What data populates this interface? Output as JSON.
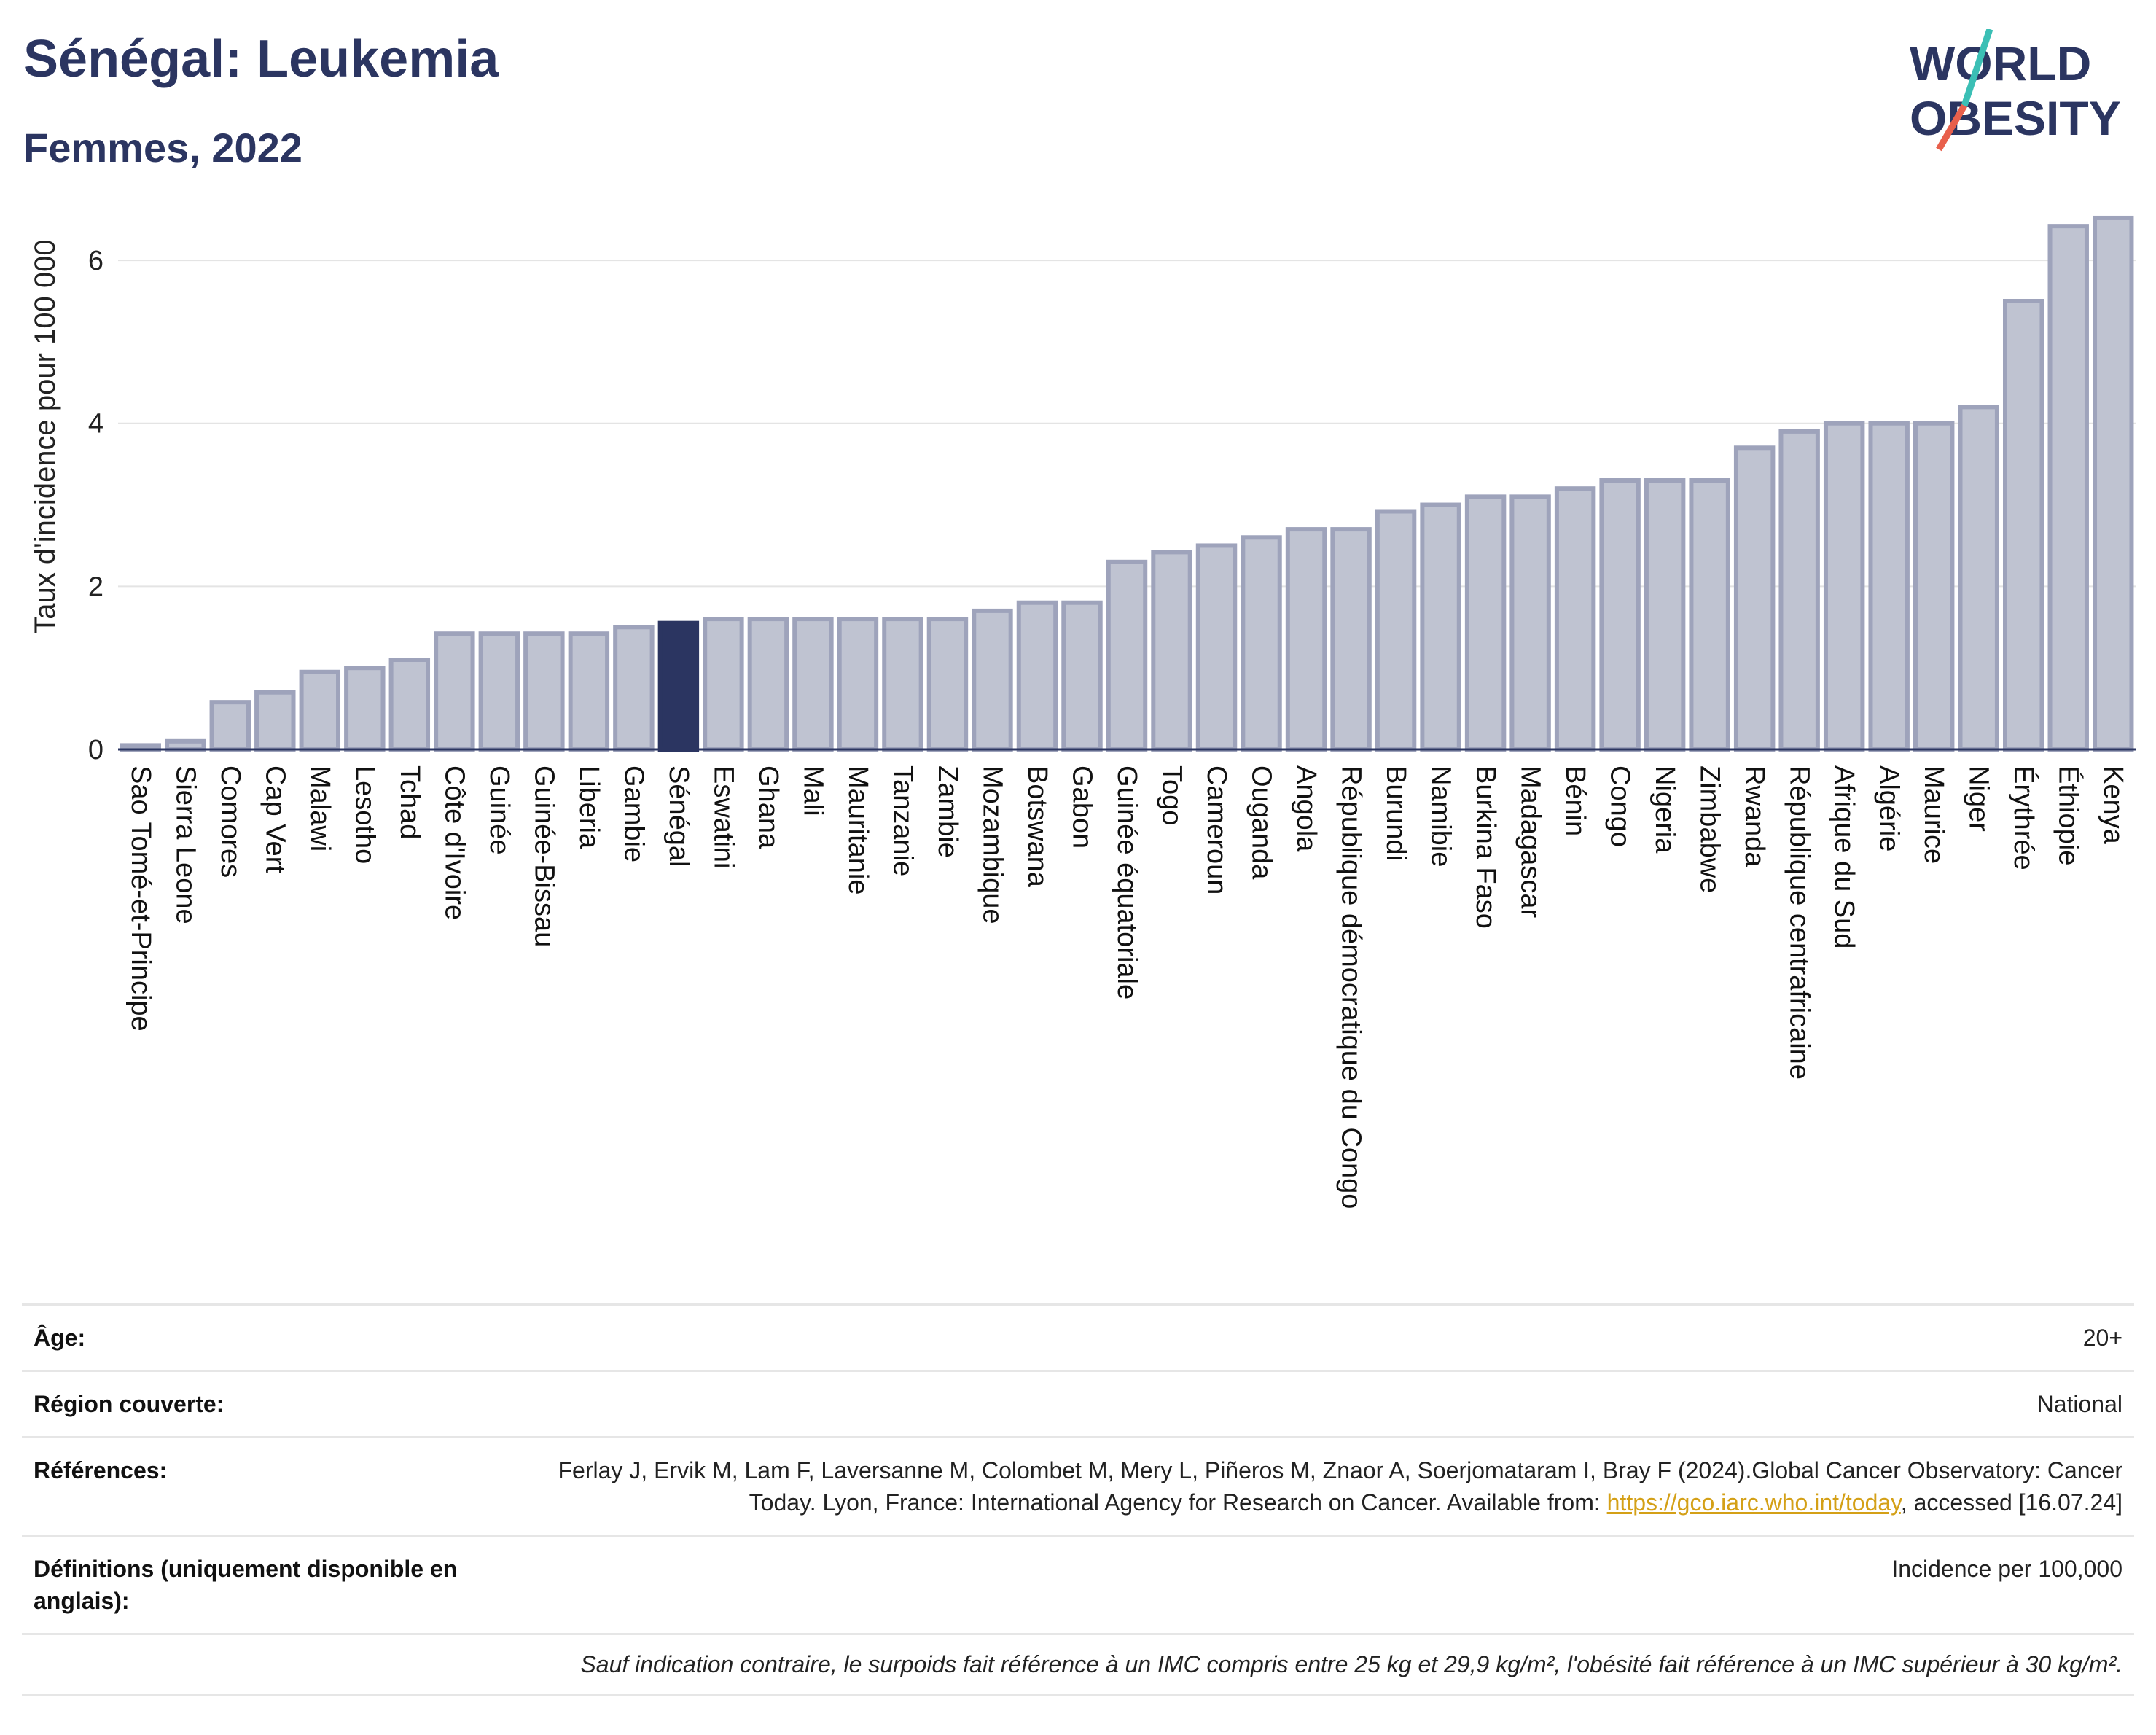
{
  "header": {
    "title": "Sénégal: Leukemia",
    "subtitle": "Femmes, 2022"
  },
  "logo": {
    "line1": "WORLD",
    "line2": "OBESITY",
    "colors": {
      "text": "#2b3561",
      "slash_teal": "#3bbfb5",
      "slash_red": "#e8604c"
    }
  },
  "chart_data": {
    "type": "bar",
    "ylabel": "Taux d'incidence pour 100 000",
    "ylim": [
      0,
      6.6
    ],
    "yticks": [
      0,
      2,
      4,
      6
    ],
    "grid": true,
    "highlight": "Sénégal",
    "colors": {
      "bar": "#bfc3d1",
      "bar_stroke": "#9ea3bb",
      "highlight": "#2b3561"
    },
    "categories": [
      "Sao Tomé-et-Principe",
      "Sierra Leone",
      "Comores",
      "Cap Vert",
      "Malawi",
      "Lesotho",
      "Tchad",
      "Côte d'Ivoire",
      "Guinée",
      "Guinée-Bissau",
      "Liberia",
      "Gambie",
      "Sénégal",
      "Eswatini",
      "Ghana",
      "Mali",
      "Mauritanie",
      "Tanzanie",
      "Zambie",
      "Mozambique",
      "Botswana",
      "Gabon",
      "Guinée équatoriale",
      "Togo",
      "Cameroun",
      "Ouganda",
      "Angola",
      "République démocratique du Congo",
      "Burundi",
      "Namibie",
      "Burkina Faso",
      "Madagascar",
      "Bénin",
      "Congo",
      "Nigeria",
      "Zimbabwe",
      "Rwanda",
      "République centrafricaine",
      "Afrique du Sud",
      "Algérie",
      "Maurice",
      "Niger",
      "Érythrée",
      "Éthiopie",
      "Kenya"
    ],
    "values": [
      0.05,
      0.1,
      0.58,
      0.7,
      0.95,
      1.0,
      1.1,
      1.42,
      1.42,
      1.42,
      1.42,
      1.5,
      1.55,
      1.6,
      1.6,
      1.6,
      1.6,
      1.6,
      1.6,
      1.7,
      1.8,
      1.8,
      2.3,
      2.42,
      2.5,
      2.6,
      2.7,
      2.7,
      2.92,
      3.0,
      3.1,
      3.1,
      3.2,
      3.3,
      3.3,
      3.3,
      3.7,
      3.9,
      4.0,
      4.0,
      4.0,
      4.2,
      5.5,
      6.42,
      6.52
    ]
  },
  "meta": {
    "age_label": "Âge:",
    "age_value": "20+",
    "region_label": "Région couverte:",
    "region_value": "National",
    "refs_label": "Références:",
    "refs_text": "Ferlay J, Ervik M, Lam F, Laversanne M, Colombet M, Mery L, Piñeros M, Znaor A, Soerjomataram I, Bray F (2024).Global Cancer Observatory: Cancer Today. Lyon, France: International Agency for Research on Cancer. Available from: ",
    "refs_link": "https://gco.iarc.who.int/today",
    "refs_suffix": ", accessed [16.07.24]",
    "defs_label": "Définitions (uniquement disponible en anglais):",
    "defs_value": "Incidence per 100,000",
    "footnote": "Sauf indication contraire, le surpoids fait référence à un IMC compris entre 25 kg et 29,9 kg/m², l'obésité fait référence à un IMC supérieur à 30 kg/m²."
  }
}
